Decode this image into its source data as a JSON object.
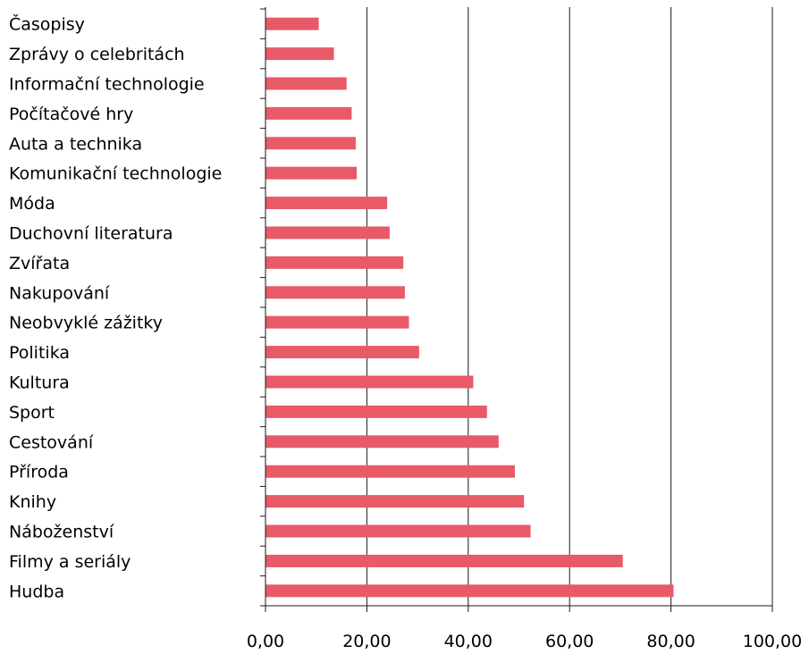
{
  "chart_data": {
    "type": "bar",
    "orientation": "horizontal",
    "categories": [
      "Časopisy",
      "Zprávy o celebritách",
      "Informační technologie",
      "Počítačové hry",
      "Auta a technika",
      "Komunikační technologie",
      "Móda",
      "Duchovní literatura",
      "Zvířata",
      "Nakupování",
      "Neobvyklé zážitky",
      "Politika",
      "Kultura",
      "Sport",
      "Cestování",
      "Příroda",
      "Knihy",
      "Náboženství",
      "Filmy a seriály",
      "Hudba"
    ],
    "values": [
      10.5,
      13.5,
      16.0,
      17.0,
      17.8,
      18.0,
      24.0,
      24.5,
      27.2,
      27.5,
      28.3,
      30.3,
      41.0,
      43.7,
      46.0,
      49.2,
      51.0,
      52.3,
      70.5,
      80.5
    ],
    "xlim": [
      0,
      100
    ],
    "ticks": [
      "0,00",
      "20,00",
      "40,00",
      "60,00",
      "80,00",
      "100,00"
    ],
    "tick_values": [
      0,
      20,
      40,
      60,
      80,
      100
    ],
    "bar_color": "#e85a67",
    "grid": true,
    "legend": "none"
  }
}
